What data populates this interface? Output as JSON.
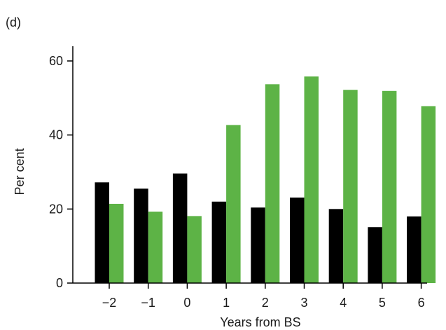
{
  "panel_label": "(d)",
  "chart_data": {
    "type": "bar",
    "categories": [
      "−2",
      "−1",
      "0",
      "1",
      "2",
      "3",
      "4",
      "5",
      "6"
    ],
    "series": [
      {
        "values": [
          27.2,
          25.5,
          29.6,
          22.0,
          20.4,
          23.1,
          20.0,
          15.1,
          18.0
        ],
        "color": "#000000"
      },
      {
        "values": [
          21.4,
          19.3,
          18.1,
          42.7,
          53.7,
          55.8,
          52.2,
          51.9,
          47.8
        ],
        "color": "#5db346"
      }
    ],
    "title": "",
    "xlabel": "Years from BS",
    "ylabel": "Per cent",
    "ylim": [
      0,
      60
    ],
    "yticks": [
      "0",
      "20",
      "40",
      "60"
    ],
    "grid": false,
    "legend": "none"
  }
}
